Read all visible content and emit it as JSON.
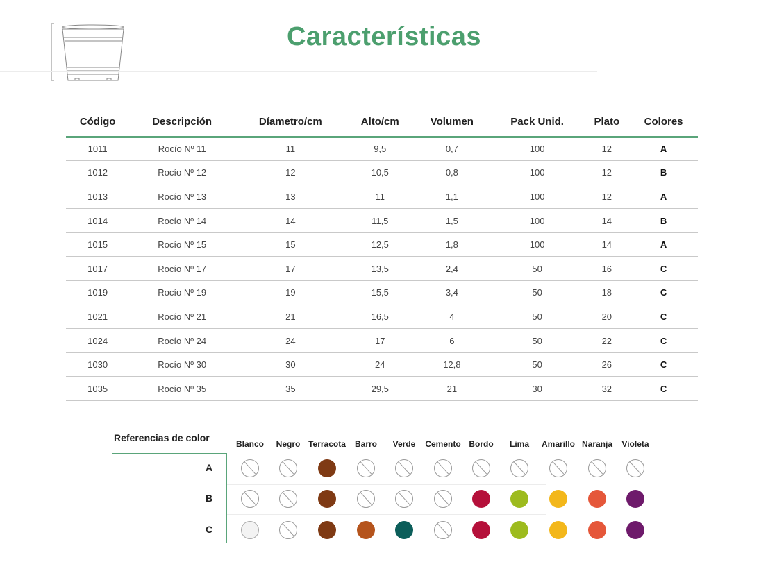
{
  "title": "Características",
  "table": {
    "headers": [
      "Código",
      "Descripción",
      "Díametro/cm",
      "Alto/cm",
      "Volumen",
      "Pack Unid.",
      "Plato",
      "Colores"
    ],
    "rows": [
      [
        "1011",
        "Rocío Nº 11",
        "11",
        "9,5",
        "0,7",
        "100",
        "12",
        "A"
      ],
      [
        "1012",
        "Rocío Nº 12",
        "12",
        "10,5",
        "0,8",
        "100",
        "12",
        "B"
      ],
      [
        "1013",
        "Rocío Nº 13",
        "13",
        "11",
        "1,1",
        "100",
        "12",
        "A"
      ],
      [
        "1014",
        "Rocío Nº 14",
        "14",
        "11,5",
        "1,5",
        "100",
        "14",
        "B"
      ],
      [
        "1015",
        "Rocío Nº 15",
        "15",
        "12,5",
        "1,8",
        "100",
        "14",
        "A"
      ],
      [
        "1017",
        "Rocío Nº 17",
        "17",
        "13,5",
        "2,4",
        "50",
        "16",
        "C"
      ],
      [
        "1019",
        "Rocío Nº 19",
        "19",
        "15,5",
        "3,4",
        "50",
        "18",
        "C"
      ],
      [
        "1021",
        "Rocío Nº 21",
        "21",
        "16,5",
        "4",
        "50",
        "20",
        "C"
      ],
      [
        "1024",
        "Rocío Nº 24",
        "24",
        "17",
        "6",
        "50",
        "22",
        "C"
      ],
      [
        "1030",
        "Rocío Nº 30",
        "30",
        "24",
        "12,8",
        "50",
        "26",
        "C"
      ],
      [
        "1035",
        "Rocío Nº 35",
        "35",
        "29,5",
        "21",
        "30",
        "32",
        "C"
      ]
    ]
  },
  "color_refs": {
    "title": "Referencias de color",
    "colors": [
      {
        "name": "Blanco",
        "hex": "#f3f3f3"
      },
      {
        "name": "Negro",
        "hex": "#111111"
      },
      {
        "name": "Terracota",
        "hex": "#7f3a14"
      },
      {
        "name": "Barro",
        "hex": "#b5541c"
      },
      {
        "name": "Verde",
        "hex": "#0b5e5a"
      },
      {
        "name": "Cemento",
        "hex": "#9a9a9a"
      },
      {
        "name": "Bordo",
        "hex": "#b5103a"
      },
      {
        "name": "Lima",
        "hex": "#9dbb1e"
      },
      {
        "name": "Amarillo",
        "hex": "#f3b71b"
      },
      {
        "name": "Naranja",
        "hex": "#e5573a"
      },
      {
        "name": "Violeta",
        "hex": "#6e1a6b"
      }
    ],
    "rows": [
      {
        "label": "A",
        "available": [
          false,
          false,
          true,
          false,
          false,
          false,
          false,
          false,
          false,
          false,
          false
        ]
      },
      {
        "label": "B",
        "available": [
          false,
          false,
          true,
          false,
          false,
          false,
          true,
          true,
          true,
          true,
          true
        ]
      },
      {
        "label": "C",
        "available": [
          true,
          false,
          true,
          true,
          true,
          false,
          true,
          true,
          true,
          true,
          true
        ]
      }
    ]
  }
}
